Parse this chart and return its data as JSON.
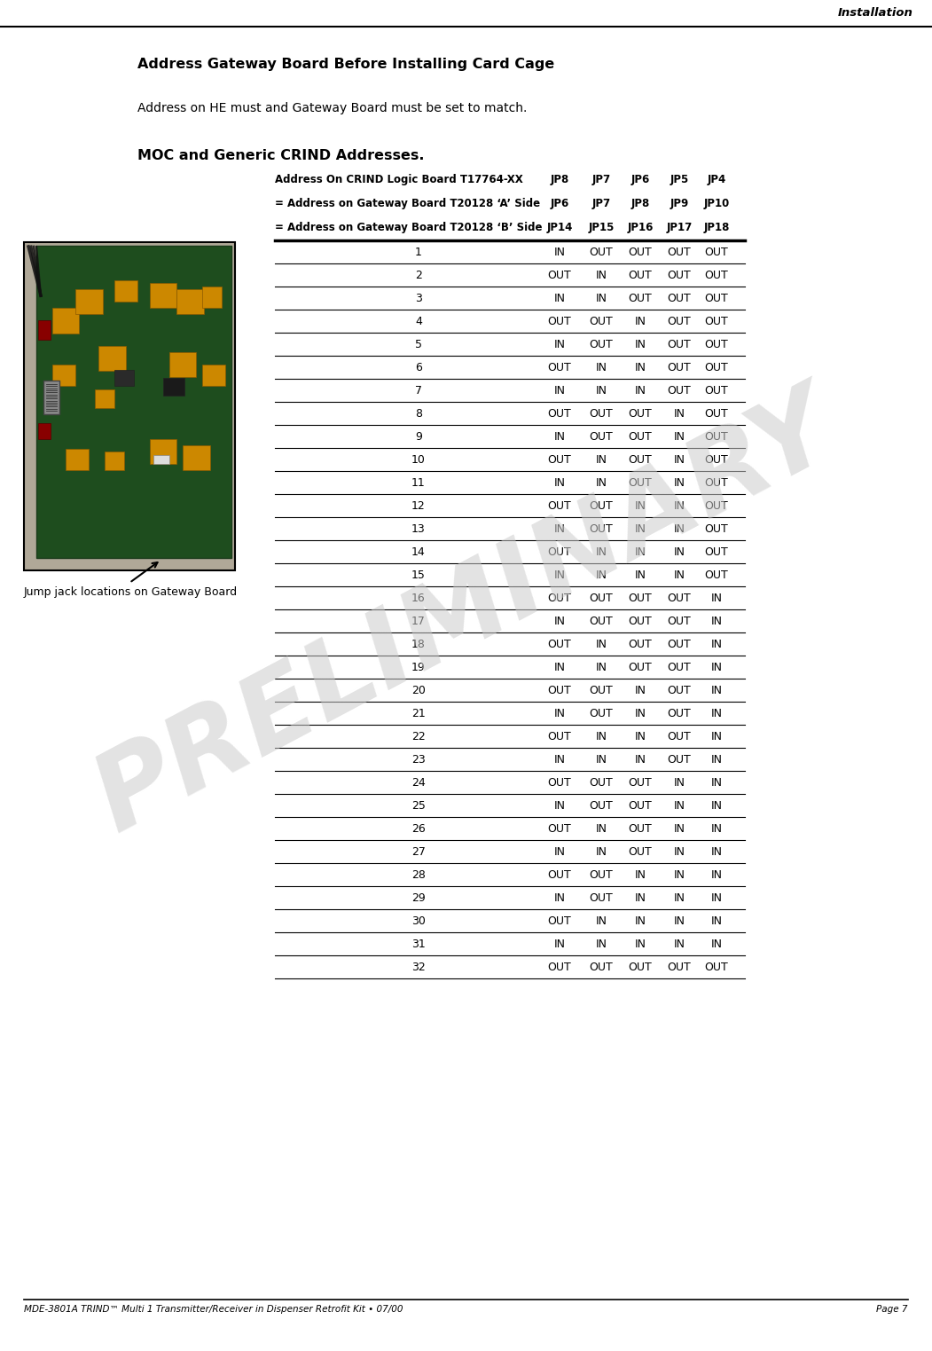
{
  "page_title": "Installation",
  "section_title": "Address Gateway Board Before Installing Card Cage",
  "description": "Address on HE must and Gateway Board must be set to match.",
  "subsection_title": "MOC and Generic CRIND Addresses.",
  "header_row1_label": "Address On CRIND Logic Board T17764-XX",
  "header_row1_cols": [
    "JP8",
    "JP7",
    "JP6",
    "JP5",
    "JP4"
  ],
  "header_row2_label": "= Address on Gateway Board T20128 ‘A’ Side",
  "header_row2_cols": [
    "JP6",
    "JP7",
    "JP8",
    "JP9",
    "JP10"
  ],
  "header_row3_label": "= Address on Gateway Board T20128 ‘B’ Side",
  "header_row3_cols": [
    "JP14",
    "JP15",
    "JP16",
    "JP17",
    "JP18"
  ],
  "table_data": [
    [
      1,
      "IN",
      "OUT",
      "OUT",
      "OUT",
      "OUT"
    ],
    [
      2,
      "OUT",
      "IN",
      "OUT",
      "OUT",
      "OUT"
    ],
    [
      3,
      "IN",
      "IN",
      "OUT",
      "OUT",
      "OUT"
    ],
    [
      4,
      "OUT",
      "OUT",
      "IN",
      "OUT",
      "OUT"
    ],
    [
      5,
      "IN",
      "OUT",
      "IN",
      "OUT",
      "OUT"
    ],
    [
      6,
      "OUT",
      "IN",
      "IN",
      "OUT",
      "OUT"
    ],
    [
      7,
      "IN",
      "IN",
      "IN",
      "OUT",
      "OUT"
    ],
    [
      8,
      "OUT",
      "OUT",
      "OUT",
      "IN",
      "OUT"
    ],
    [
      9,
      "IN",
      "OUT",
      "OUT",
      "IN",
      "OUT"
    ],
    [
      10,
      "OUT",
      "IN",
      "OUT",
      "IN",
      "OUT"
    ],
    [
      11,
      "IN",
      "IN",
      "OUT",
      "IN",
      "OUT"
    ],
    [
      12,
      "OUT",
      "OUT",
      "IN",
      "IN",
      "OUT"
    ],
    [
      13,
      "IN",
      "OUT",
      "IN",
      "IN",
      "OUT"
    ],
    [
      14,
      "OUT",
      "IN",
      "IN",
      "IN",
      "OUT"
    ],
    [
      15,
      "IN",
      "IN",
      "IN",
      "IN",
      "OUT"
    ],
    [
      16,
      "OUT",
      "OUT",
      "OUT",
      "OUT",
      "IN"
    ],
    [
      17,
      "IN",
      "OUT",
      "OUT",
      "OUT",
      "IN"
    ],
    [
      18,
      "OUT",
      "IN",
      "OUT",
      "OUT",
      "IN"
    ],
    [
      19,
      "IN",
      "IN",
      "OUT",
      "OUT",
      "IN"
    ],
    [
      20,
      "OUT",
      "OUT",
      "IN",
      "OUT",
      "IN"
    ],
    [
      21,
      "IN",
      "OUT",
      "IN",
      "OUT",
      "IN"
    ],
    [
      22,
      "OUT",
      "IN",
      "IN",
      "OUT",
      "IN"
    ],
    [
      23,
      "IN",
      "IN",
      "IN",
      "OUT",
      "IN"
    ],
    [
      24,
      "OUT",
      "OUT",
      "OUT",
      "IN",
      "IN"
    ],
    [
      25,
      "IN",
      "OUT",
      "OUT",
      "IN",
      "IN"
    ],
    [
      26,
      "OUT",
      "IN",
      "OUT",
      "IN",
      "IN"
    ],
    [
      27,
      "IN",
      "IN",
      "OUT",
      "IN",
      "IN"
    ],
    [
      28,
      "OUT",
      "OUT",
      "IN",
      "IN",
      "IN"
    ],
    [
      29,
      "IN",
      "OUT",
      "IN",
      "IN",
      "IN"
    ],
    [
      30,
      "OUT",
      "IN",
      "IN",
      "IN",
      "IN"
    ],
    [
      31,
      "IN",
      "IN",
      "IN",
      "IN",
      "IN"
    ],
    [
      32,
      "OUT",
      "OUT",
      "OUT",
      "OUT",
      "OUT"
    ]
  ],
  "image_caption": "Jump jack locations on Gateway Board",
  "footer_left": "MDE-3801A TRIND™ Multi 1 Transmitter/Receiver in Dispenser Retrofit Kit • 07/00",
  "footer_right": "Page 7",
  "preliminary_text": "PRELIMINARY",
  "bg_color": "#ffffff",
  "text_color": "#000000",
  "table_line_color": "#000000"
}
